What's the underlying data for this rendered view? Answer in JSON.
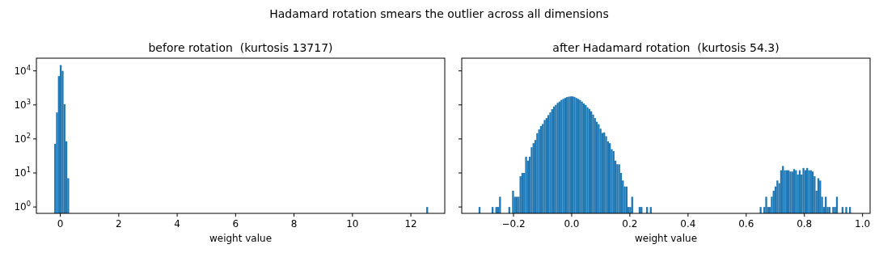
{
  "chart_data": [
    {
      "type": "histogram",
      "title": "before rotation  (kurtosis 13717)",
      "xlabel": "weight value",
      "annotations": [
        "Hadamard rotation smears the outlier across all dimensions"
      ],
      "color": "#1f77b4",
      "log": "y",
      "bins": [
        -0.21,
        -0.146,
        -0.082,
        -0.018,
        0.046,
        0.11,
        0.174,
        0.238,
        0.302,
        12.526,
        12.59
      ],
      "values": [
        72,
        600,
        7000,
        14800,
        10000,
        1050,
        85,
        7,
        null,
        1
      ],
      "xlim": [
        -0.82,
        13.16
      ],
      "xticks": [
        0,
        2,
        4,
        6,
        8,
        10,
        12
      ],
      "ylim": [
        0.65,
        23600
      ],
      "yticks": [
        {
          "value": 1,
          "label": "10$^{0}$"
        },
        {
          "value": 10,
          "label": "10$^{1}$"
        },
        {
          "value": 100,
          "label": "10$^{2}$"
        },
        {
          "value": 1000,
          "label": "10$^{3}$"
        },
        {
          "value": 10000,
          "label": "10$^{4}$"
        }
      ]
    },
    {
      "type": "histogram",
      "title": "after Hadamard rotation  (kurtosis 54.3)",
      "xlabel": "weight value",
      "color": "#1f77b4",
      "log": "y",
      "tick_labels": "x",
      "bins": [
        -0.32,
        -0.3136,
        -0.2752,
        -0.2688,
        -0.2624,
        -0.256,
        -0.2496,
        -0.2432,
        -0.2176,
        -0.2112,
        -0.2048,
        -0.1984,
        -0.192,
        -0.1856,
        -0.1792,
        -0.1728,
        -0.1664,
        -0.16,
        -0.1536,
        -0.1472,
        -0.1408,
        -0.1344,
        -0.128,
        -0.1216,
        -0.1152,
        -0.1088,
        -0.1024,
        -0.096,
        -0.0896,
        -0.0832,
        -0.0768,
        -0.0704,
        -0.064,
        -0.0576,
        -0.0512,
        -0.0448,
        -0.0384,
        -0.032,
        -0.0256,
        -0.0192,
        -0.0128,
        -0.0064,
        0,
        0.0064,
        0.0128,
        0.0192,
        0.0256,
        0.032,
        0.0384,
        0.0448,
        0.0512,
        0.0576,
        0.064,
        0.0704,
        0.0768,
        0.0832,
        0.0896,
        0.096,
        0.1024,
        0.1088,
        0.1152,
        0.1216,
        0.128,
        0.1344,
        0.1408,
        0.1472,
        0.1536,
        0.16,
        0.1664,
        0.1728,
        0.1792,
        0.1856,
        0.192,
        0.1984,
        0.2048,
        0.2112,
        0.2304,
        0.2368,
        0.2432,
        0.256,
        0.2624,
        0.2688,
        0.2752,
        0.6464,
        0.6528,
        0.6592,
        0.6656,
        0.672,
        0.6784,
        0.6848,
        0.6912,
        0.6976,
        0.704,
        0.7104,
        0.7168,
        0.7232,
        0.7296,
        0.736,
        0.7424,
        0.7488,
        0.7552,
        0.7616,
        0.768,
        0.7744,
        0.7808,
        0.7872,
        0.7936,
        0.8,
        0.8064,
        0.8128,
        0.8192,
        0.8256,
        0.832,
        0.8384,
        0.8448,
        0.8512,
        0.8576,
        0.864,
        0.8704,
        0.8768,
        0.8832,
        0.8896,
        0.896,
        0.9024,
        0.9088,
        0.9152,
        0.928,
        0.9344,
        0.9408,
        0.9472,
        0.9536,
        0.96
      ],
      "values": [
        1,
        null,
        1,
        null,
        1,
        1,
        2,
        null,
        1,
        null,
        3,
        2,
        2,
        2,
        8,
        10,
        10,
        30,
        23,
        30,
        57,
        75,
        93,
        147,
        190,
        240,
        275,
        360,
        410,
        500,
        600,
        750,
        900,
        1000,
        1150,
        1250,
        1400,
        1500,
        1600,
        1700,
        1750,
        1780,
        1780,
        1720,
        1600,
        1500,
        1400,
        1250,
        1100,
        1000,
        850,
        760,
        650,
        520,
        410,
        320,
        270,
        200,
        150,
        155,
        120,
        85,
        75,
        50,
        44,
        23,
        18,
        18,
        10,
        6,
        4,
        4,
        1,
        1,
        2,
        null,
        1,
        1,
        null,
        1,
        null,
        1,
        null,
        1,
        null,
        1,
        2,
        1,
        1,
        2,
        3,
        4,
        6,
        5,
        12,
        16,
        12,
        12,
        12,
        11,
        11,
        13,
        12,
        9,
        12,
        9,
        14,
        12,
        14,
        12,
        12,
        11,
        8,
        3,
        7,
        6,
        2,
        1,
        2,
        1,
        1,
        null,
        1,
        1,
        2,
        null,
        1,
        null,
        1,
        null,
        1
      ],
      "xlim": [
        -0.378,
        1.026
      ],
      "xticks": [
        {
          "value": -0.2,
          "label": "−0.2"
        },
        {
          "value": 0,
          "label": "0.0"
        },
        {
          "value": 0.2,
          "label": "0.2"
        },
        {
          "value": 0.4,
          "label": "0.4"
        },
        {
          "value": 0.6,
          "label": "0.6"
        },
        {
          "value": 0.8,
          "label": "0.8"
        },
        {
          "value": 1,
          "label": "1.0"
        }
      ],
      "ylim": [
        0.65,
        23600
      ],
      "yticks": [
        {
          "value": 1,
          "label": null
        },
        {
          "value": 10,
          "label": null
        },
        {
          "value": 100,
          "label": null
        },
        {
          "value": 1000,
          "label": null
        },
        {
          "value": 10000,
          "label": null
        }
      ]
    }
  ]
}
